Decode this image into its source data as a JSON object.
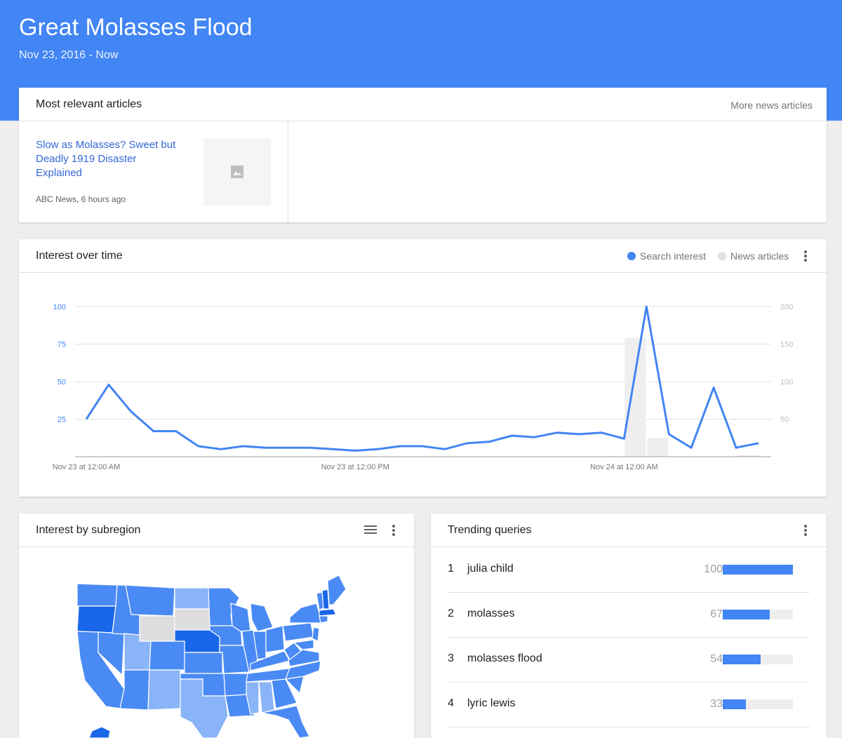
{
  "header": {
    "title": "Great Molasses Flood",
    "date_range": "Nov 23, 2016 - Now"
  },
  "articles_card": {
    "title": "Most relevant articles",
    "more_link": "More news articles",
    "items": [
      {
        "headline": "Slow as Molasses? Sweet but Deadly 1919 Disaster Explained",
        "source": "ABC News, 6 hours ago",
        "thumbnail_icon": "image-placeholder-icon"
      }
    ]
  },
  "interest_card": {
    "title": "Interest over time",
    "legend": [
      {
        "label": "Search interest",
        "color": "#4285f4"
      },
      {
        "label": "News articles",
        "color": "#e0e0e0"
      }
    ]
  },
  "chart_data": {
    "type": "line",
    "x_tick_labels": [
      "Nov 23 at 12:00 AM",
      "Nov 23 at 12:00 PM",
      "Nov 24 at 12:00 AM"
    ],
    "y_left_ticks": [
      "25",
      "50",
      "75",
      "100"
    ],
    "y_right_ticks": [
      "50",
      "100",
      "150",
      "200"
    ],
    "ylim_left": [
      0,
      100
    ],
    "ylim_right": [
      0,
      200
    ],
    "grid": true,
    "series": [
      {
        "name": "Search interest",
        "axis": "left",
        "color": "#4285f4",
        "values": [
          25,
          48,
          30,
          17,
          17,
          7,
          5,
          7,
          6,
          6,
          6,
          5,
          4,
          5,
          7,
          7,
          5,
          9,
          10,
          14,
          13,
          16,
          15,
          16,
          12,
          100,
          15,
          6,
          46,
          6,
          9
        ]
      },
      {
        "name": "News articles",
        "axis": "right",
        "type": "bar",
        "color": "#eeeeee",
        "bars": [
          {
            "index": 24.5,
            "value": 158
          },
          {
            "index": 25.5,
            "value": 25
          },
          {
            "index": 29.5,
            "value": 2
          }
        ]
      }
    ]
  },
  "subregion_card": {
    "title": "Interest by subregion",
    "list_icon": "list-view-icon",
    "menu_icon": "more-vert-icon"
  },
  "trending_card": {
    "title": "Trending queries",
    "menu_icon": "more-vert-icon",
    "queries": [
      {
        "rank": "1",
        "text": "julia child",
        "value": "100",
        "fraction": 1.0
      },
      {
        "rank": "2",
        "text": "molasses",
        "value": "67",
        "fraction": 0.67
      },
      {
        "rank": "3",
        "text": "molasses flood",
        "value": "54",
        "fraction": 0.54
      },
      {
        "rank": "4",
        "text": "lyric lewis",
        "value": "33",
        "fraction": 0.33
      }
    ]
  },
  "colors": {
    "brand_blue": "#4285f4",
    "link_blue": "#3367d6",
    "map_dark": "#1a66e8",
    "map_mid": "#4a8af4",
    "map_light": "#8ab4f8",
    "map_none": "#dddddd"
  }
}
